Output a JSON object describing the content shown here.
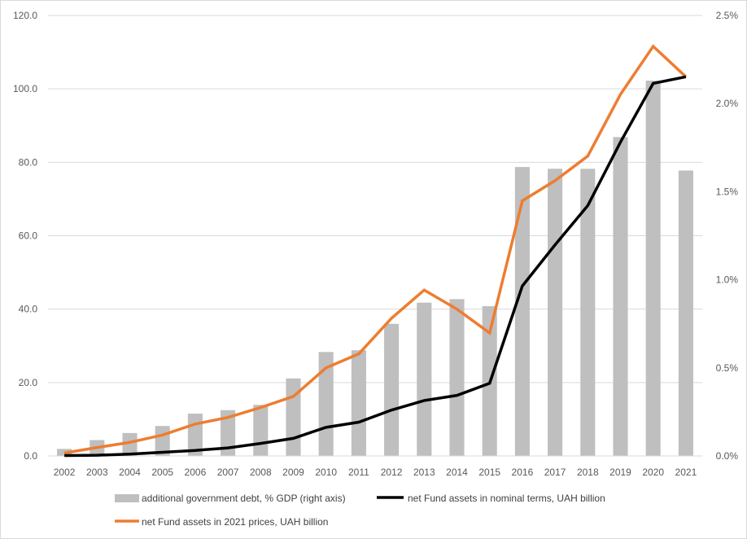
{
  "chart_data": {
    "type": "bar",
    "title": "",
    "xlabel": "",
    "ylabel": "",
    "categories": [
      "2002",
      "2003",
      "2004",
      "2005",
      "2006",
      "2007",
      "2008",
      "2009",
      "2010",
      "2011",
      "2012",
      "2013",
      "2014",
      "2015",
      "2016",
      "2017",
      "2018",
      "2019",
      "2020",
      "2021"
    ],
    "y_left": {
      "min": 0,
      "max": 120,
      "step": 20,
      "tick_labels": [
        "0.0",
        "20.0",
        "40.0",
        "60.0",
        "80.0",
        "100.0",
        "120.0"
      ]
    },
    "y_right": {
      "min": 0,
      "max": 0.025,
      "step": 0.005,
      "tick_labels": [
        "0.0%",
        "0.5%",
        "1.0%",
        "1.5%",
        "2.0%",
        "2.5%"
      ]
    },
    "series": [
      {
        "name": "additional government debt, % GDP (right axis)",
        "type": "bar",
        "axis": "right",
        "color": "#bfbfbf",
        "values": [
          0.0004,
          0.0009,
          0.0013,
          0.0017,
          0.0024,
          0.0026,
          0.0029,
          0.0044,
          0.0059,
          0.006,
          0.0075,
          0.0087,
          0.0089,
          0.0085,
          0.0164,
          0.0163,
          0.0163,
          0.0181,
          0.0213,
          0.0162
        ]
      },
      {
        "name": "net Fund assets in nominal terms, UAH billion",
        "type": "line",
        "axis": "left",
        "color": "#000000",
        "values": [
          0.1,
          0.2,
          0.5,
          1.0,
          1.5,
          2.2,
          3.4,
          4.8,
          7.8,
          9.2,
          12.5,
          15.1,
          16.5,
          19.8,
          46.3,
          57.5,
          68.2,
          85.5,
          101.5,
          103.3
        ]
      },
      {
        "name": "net Fund assets in 2021 prices, UAH billion",
        "type": "line",
        "axis": "left",
        "color": "#ed7d31",
        "values": [
          0.8,
          2.3,
          3.7,
          5.7,
          8.7,
          10.5,
          13.2,
          16.2,
          24.0,
          27.8,
          37.5,
          45.2,
          40.0,
          33.5,
          69.5,
          75.0,
          81.7,
          98.5,
          111.6,
          103.3
        ]
      }
    ],
    "grid": "horizontal",
    "legend_position": "bottom"
  }
}
